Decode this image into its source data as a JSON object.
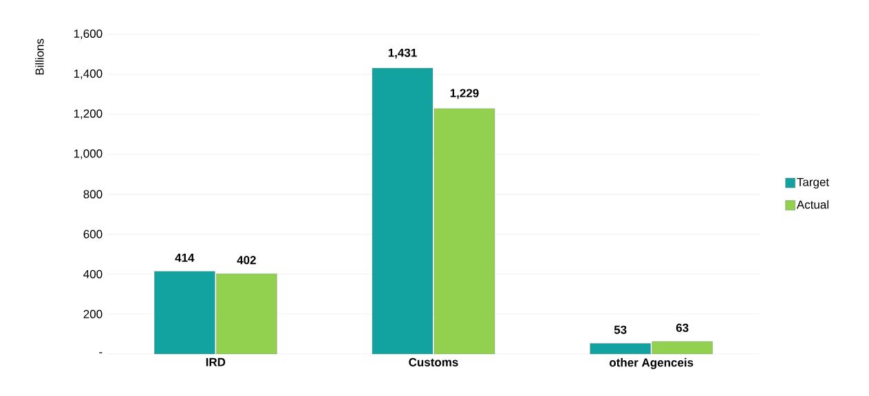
{
  "chart_data": {
    "type": "bar",
    "ylabel": "Billions",
    "categories": [
      "IRD",
      "Customs",
      "other Agenceis"
    ],
    "series": [
      {
        "name": "Target",
        "color": "#12a3a0",
        "values": [
          414,
          1431,
          53
        ],
        "value_labels": [
          "414",
          "1,431",
          "53"
        ]
      },
      {
        "name": "Actual",
        "color": "#92d050",
        "values": [
          402,
          1229,
          63
        ],
        "value_labels": [
          "402",
          "1,229",
          "63"
        ]
      }
    ],
    "ylim": [
      0,
      1600
    ],
    "yticks": [
      {
        "value": 0,
        "label": "-"
      },
      {
        "value": 200,
        "label": "200"
      },
      {
        "value": 400,
        "label": "400"
      },
      {
        "value": 600,
        "label": "600"
      },
      {
        "value": 800,
        "label": "800"
      },
      {
        "value": 1000,
        "label": "1,000"
      },
      {
        "value": 1200,
        "label": "1,200"
      },
      {
        "value": 1400,
        "label": "1,400"
      },
      {
        "value": 1600,
        "label": "1,600"
      }
    ],
    "grid": "y",
    "legend": "right"
  }
}
